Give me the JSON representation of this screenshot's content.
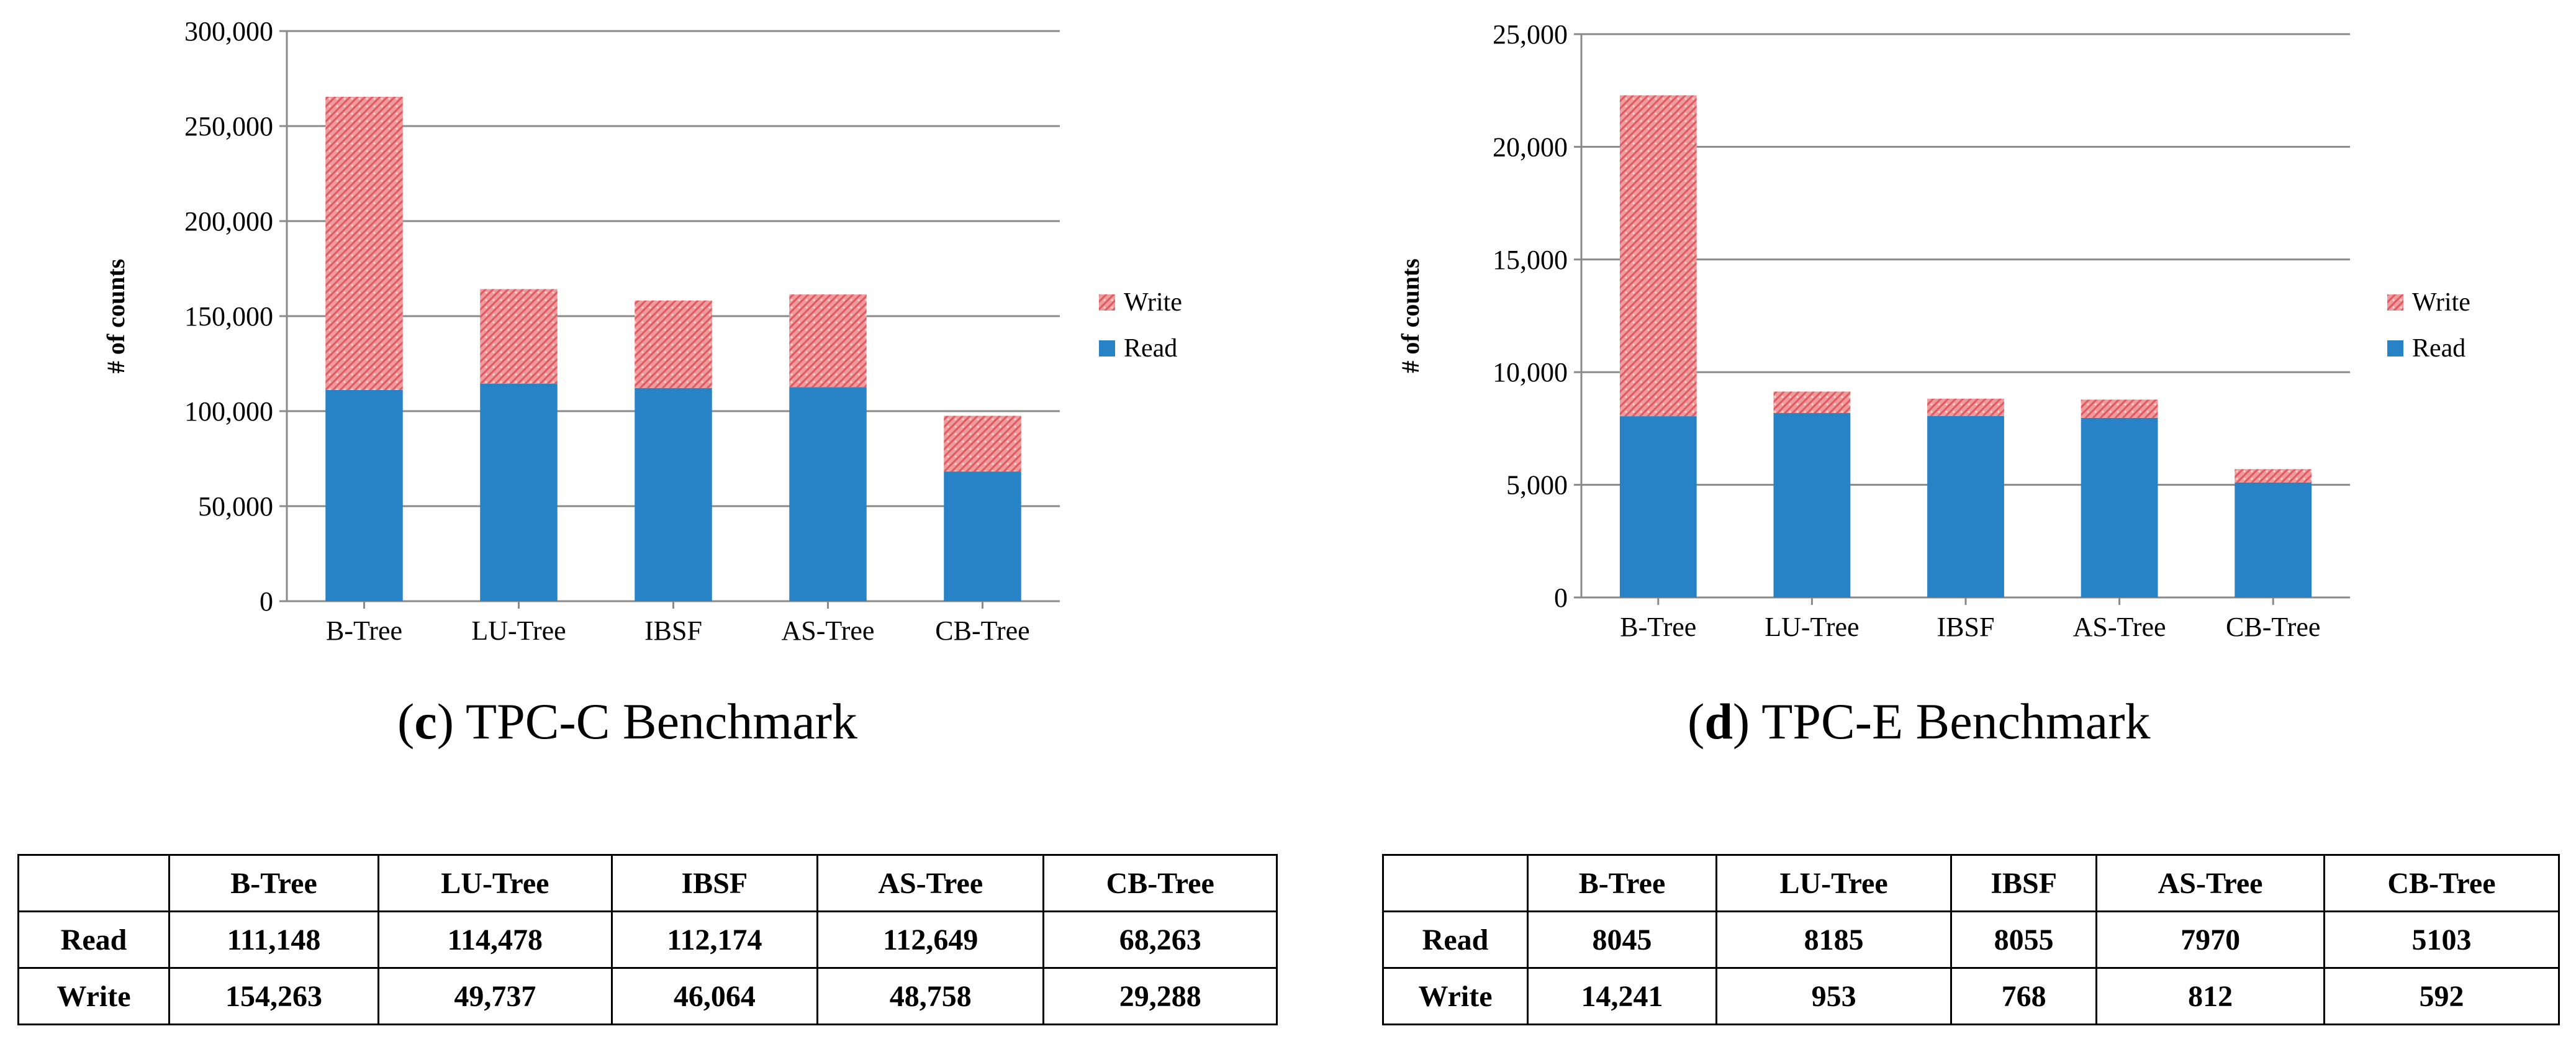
{
  "chart_data": [
    {
      "type": "bar",
      "stacked": true,
      "caption_letter": "c",
      "caption_text": "TPC-C Benchmark",
      "xlabel": "",
      "ylabel": "# of counts",
      "ylim": [
        0,
        300000
      ],
      "yticks": [
        "0",
        "50,000",
        "100,000",
        "150,000",
        "200,000",
        "250,000",
        "300,000"
      ],
      "ytick_values": [
        0,
        50000,
        100000,
        150000,
        200000,
        250000,
        300000
      ],
      "categories": [
        "B-Tree",
        "LU-Tree",
        "IBSF",
        "AS-Tree",
        "CB-Tree"
      ],
      "series": [
        {
          "name": "Read",
          "color": "#2882c6",
          "values": [
            111148,
            114478,
            112174,
            112649,
            68263
          ]
        },
        {
          "name": "Write",
          "color": "#e86e73",
          "values": [
            154263,
            49737,
            46064,
            48758,
            29288
          ]
        }
      ],
      "legend": [
        "Write",
        "Read"
      ],
      "legend_position": "right",
      "grid": true
    },
    {
      "type": "bar",
      "stacked": true,
      "caption_letter": "d",
      "caption_text": "TPC-E Benchmark",
      "xlabel": "",
      "ylabel": "# of counts",
      "ylim": [
        0,
        25000
      ],
      "yticks": [
        "0",
        "5,000",
        "10,000",
        "15,000",
        "20,000",
        "25,000"
      ],
      "ytick_values": [
        0,
        5000,
        10000,
        15000,
        20000,
        25000
      ],
      "categories": [
        "B-Tree",
        "LU-Tree",
        "IBSF",
        "AS-Tree",
        "CB-Tree"
      ],
      "series": [
        {
          "name": "Read",
          "color": "#2882c6",
          "values": [
            8045,
            8185,
            8055,
            7970,
            5103
          ]
        },
        {
          "name": "Write",
          "color": "#e86e73",
          "values": [
            14241,
            953,
            768,
            812,
            592
          ]
        }
      ],
      "legend": [
        "Write",
        "Read"
      ],
      "legend_position": "right",
      "grid": true
    }
  ],
  "tables": [
    {
      "header": [
        "",
        "B-Tree",
        "LU-Tree",
        "IBSF",
        "AS-Tree",
        "CB-Tree"
      ],
      "rows": [
        [
          "Read",
          "111,148",
          "114,478",
          "112,174",
          "112,649",
          "68,263"
        ],
        [
          "Write",
          "154,263",
          "49,737",
          "46,064",
          "48,758",
          "29,288"
        ]
      ]
    },
    {
      "header": [
        "",
        "B-Tree",
        "LU-Tree",
        "IBSF",
        "AS-Tree",
        "CB-Tree"
      ],
      "rows": [
        [
          "Read",
          "8045",
          "8185",
          "8055",
          "7970",
          "5103"
        ],
        [
          "Write",
          "14,241",
          "953",
          "768",
          "812",
          "592"
        ]
      ]
    }
  ]
}
